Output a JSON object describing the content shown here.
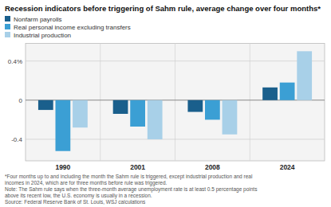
{
  "chart_data": {
    "type": "bar",
    "title": "Recession indicators before triggering of Sahm rule, average change over four months*",
    "categories": [
      "1990",
      "2001",
      "2008",
      "2024"
    ],
    "series": [
      {
        "name": "Nonfarm payrolls",
        "color": "#1a5f8c",
        "values": [
          -0.1,
          -0.14,
          -0.12,
          0.13
        ]
      },
      {
        "name": "Real personal income excluding transfers",
        "color": "#3b9fd4",
        "values": [
          -0.52,
          -0.27,
          -0.2,
          0.18
        ]
      },
      {
        "name": "Industrial production",
        "color": "#a8d0e8",
        "values": [
          -0.28,
          -0.4,
          -0.35,
          0.5
        ]
      }
    ],
    "ylim": [
      -0.62,
      0.58
    ],
    "yticks": [
      -0.4,
      0,
      {
        "value": 0.4,
        "label": "0.4%"
      }
    ],
    "grid": true,
    "legend": "top-left",
    "annotations": [
      "*Four months up to and including the month the Sahm rule is triggered, except industrial production and real",
      "incomes in 2024, which are for three months before rule was triggered.",
      "Note: The Sahm rule says when the three-month average unemployment rate is at least 0.5 percentage points",
      "above its recent low, the U.S. economy is usually in a recession.",
      "Source: Federal Reserve Bank of St. Louis, WSJ calculations"
    ]
  }
}
